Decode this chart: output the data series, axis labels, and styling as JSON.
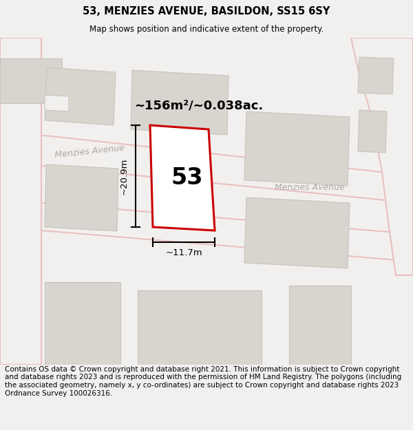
{
  "title": "53, MENZIES AVENUE, BASILDON, SS15 6SY",
  "subtitle": "Map shows position and indicative extent of the property.",
  "footer": "Contains OS data © Crown copyright and database right 2021. This information is subject to Crown copyright and database rights 2023 and is reproduced with the permission of HM Land Registry. The polygons (including the associated geometry, namely x, y co-ordinates) are subject to Crown copyright and database rights 2023 Ordnance Survey 100026316.",
  "bg_color": "#f2f0ee",
  "map_bg": "#f2f0ee",
  "road_color": "#e8c0c0",
  "road_fill": "#f2f0ee",
  "building_fill": "#d8d4ce",
  "building_edge": "#c8c4be",
  "plot_color": "#cc0000",
  "plot_fill": "#ffffff",
  "plot_label": "53",
  "area_label": "~156m²/~0.038ac.",
  "width_label": "~11.7m",
  "height_label": "~20.9m",
  "street_label_1": "Menzies Avenue",
  "street_label_2": "Menzies Avenue",
  "title_fontsize": 11,
  "subtitle_fontsize": 9,
  "footer_fontsize": 7.5
}
